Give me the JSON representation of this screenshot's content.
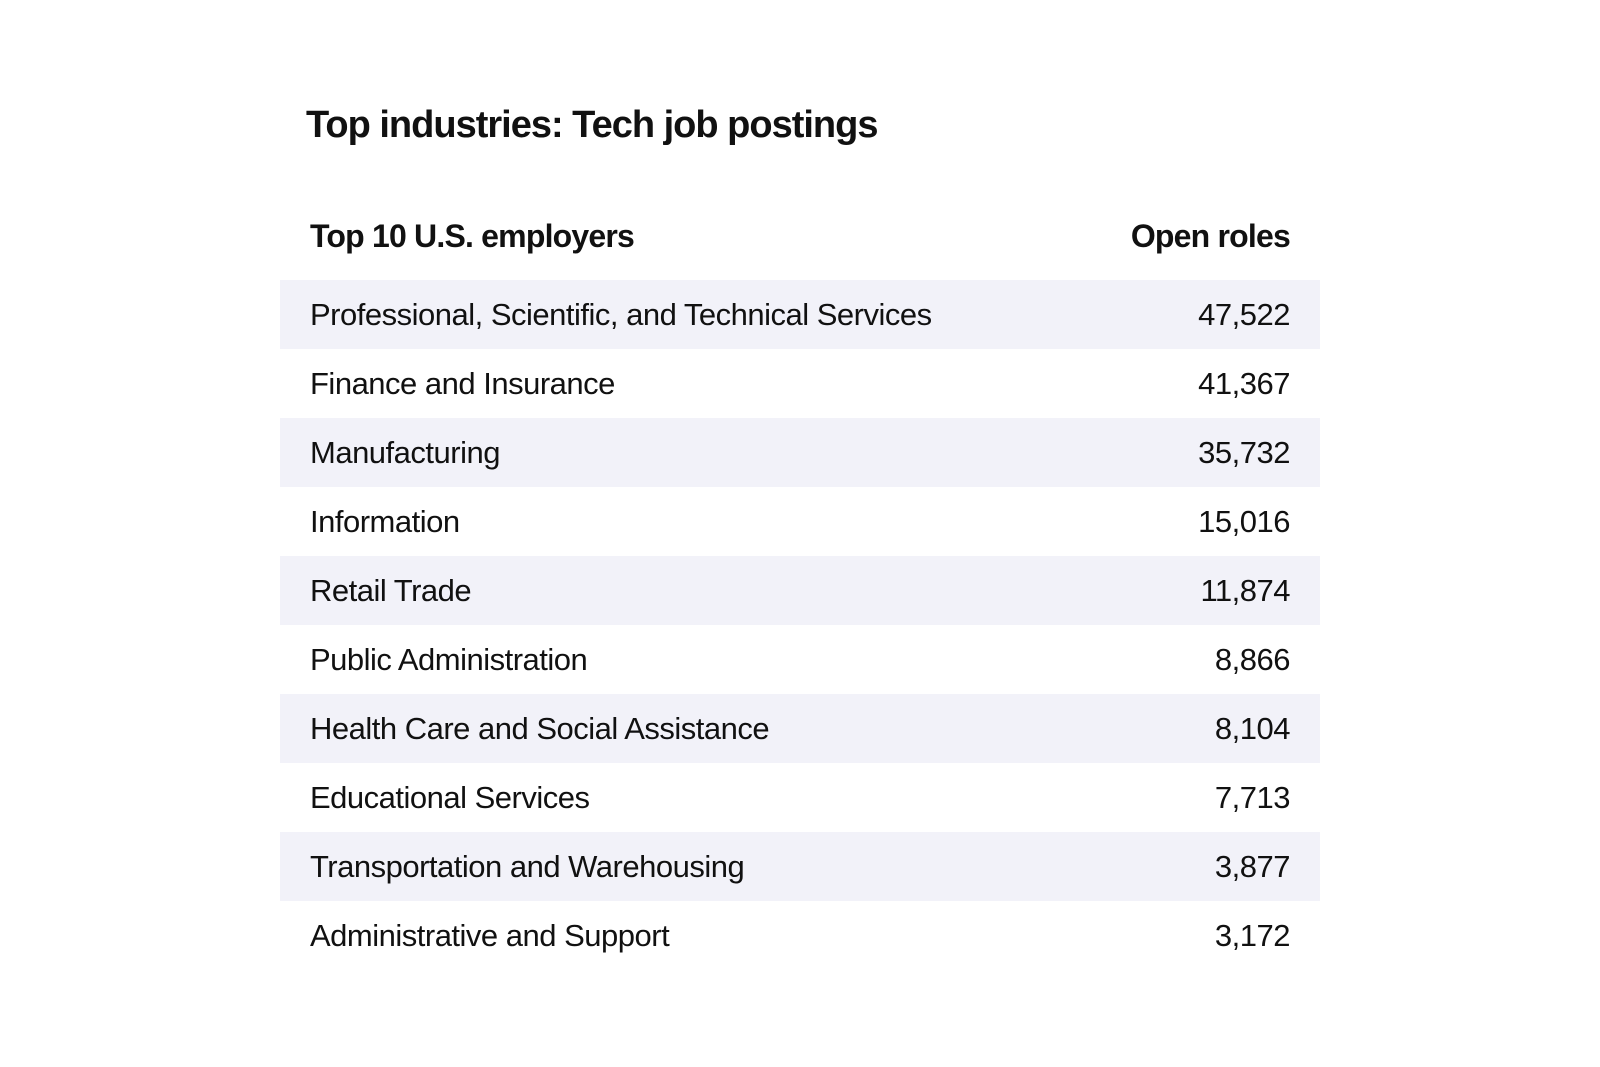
{
  "title": "Top industries: Tech job postings",
  "colors": {
    "background": "#FFFFFF",
    "stripe": "#F2F2F9",
    "text": "#111111"
  },
  "table": {
    "header": {
      "employer": "Top 10 U.S. employers",
      "roles": "Open roles"
    },
    "rows": [
      {
        "industry": "Professional, Scientific, and Technical Services",
        "roles": "47,522"
      },
      {
        "industry": "Finance and Insurance",
        "roles": "41,367"
      },
      {
        "industry": "Manufacturing",
        "roles": "35,732"
      },
      {
        "industry": "Information",
        "roles": "15,016"
      },
      {
        "industry": "Retail Trade",
        "roles": "11,874"
      },
      {
        "industry": "Public Administration",
        "roles": "8,866"
      },
      {
        "industry": "Health Care and Social Assistance",
        "roles": "8,104"
      },
      {
        "industry": "Educational Services",
        "roles": "7,713"
      },
      {
        "industry": "Transportation and Warehousing",
        "roles": "3,877"
      },
      {
        "industry": "Administrative and Support",
        "roles": "3,172"
      }
    ]
  },
  "chart_data": {
    "type": "table",
    "title": "Top industries: Tech job postings",
    "columns": [
      "Top 10 U.S. employers",
      "Open roles"
    ],
    "categories": [
      "Professional, Scientific, and Technical Services",
      "Finance and Insurance",
      "Manufacturing",
      "Information",
      "Retail Trade",
      "Public Administration",
      "Health Care and Social Assistance",
      "Educational Services",
      "Transportation and Warehousing",
      "Administrative and Support"
    ],
    "values": [
      47522,
      41367,
      35732,
      15016,
      11874,
      8866,
      8104,
      7713,
      3877,
      3172
    ],
    "layout": {
      "striped_rows": "odd",
      "value_alignment": "right",
      "grid": false,
      "legend": "none"
    }
  }
}
